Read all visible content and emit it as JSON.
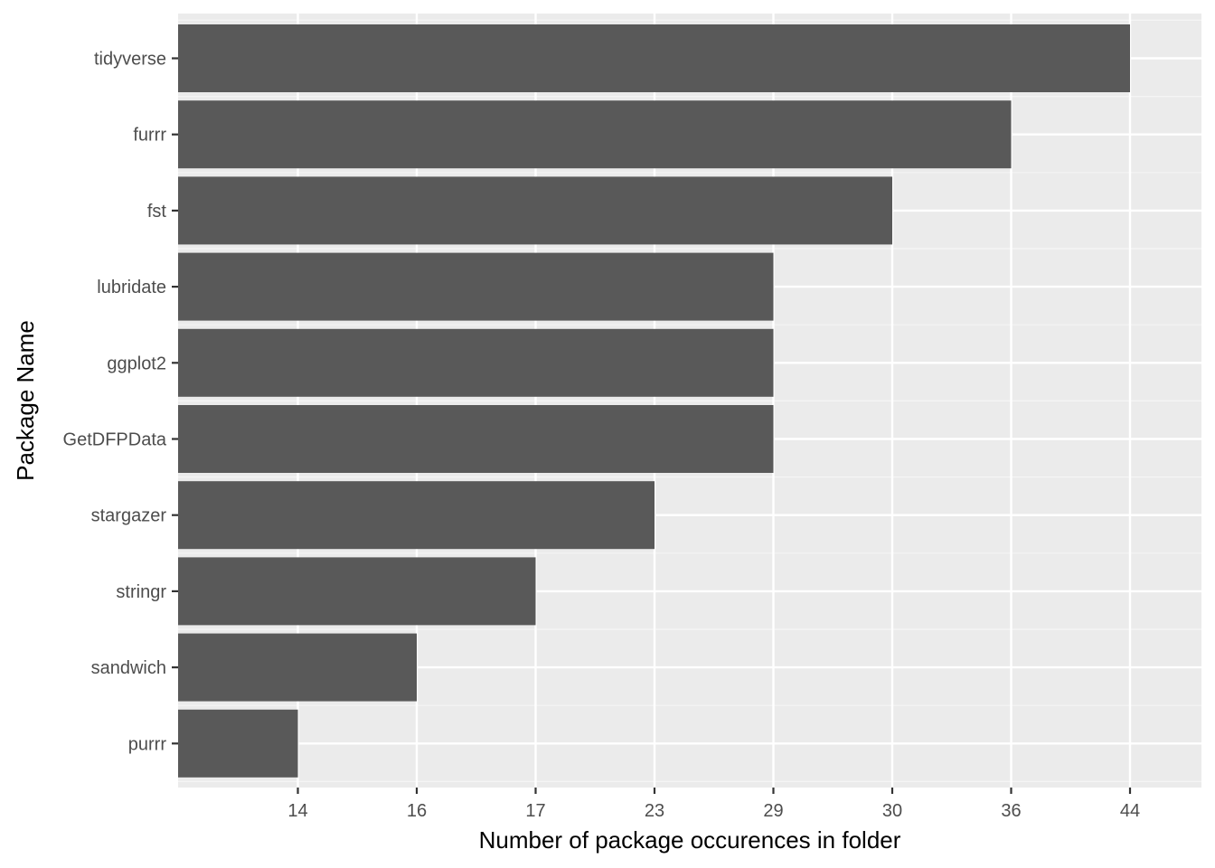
{
  "chart_data": {
    "type": "bar",
    "orientation": "horizontal",
    "categories": [
      "tidyverse",
      "furrr",
      "fst",
      "lubridate",
      "ggplot2",
      "GetDFPData",
      "stargazer",
      "stringr",
      "sandwich",
      "purrr"
    ],
    "values": [
      44,
      36,
      30,
      29,
      29,
      29,
      23,
      17,
      16,
      14
    ],
    "x_tick_labels": [
      "14",
      "16",
      "17",
      "23",
      "29",
      "30",
      "36",
      "44"
    ],
    "xlabel": "Number of package occurences in folder",
    "ylabel": "Package Name",
    "grid": true,
    "legend": "none",
    "colors": {
      "bar": "#595959",
      "panel_background": "#ebebeb",
      "grid_major": "#ffffff",
      "grid_minor": "#f5f5f5",
      "tick_text": "#4d4d4d",
      "tick_mark": "#333333"
    }
  }
}
